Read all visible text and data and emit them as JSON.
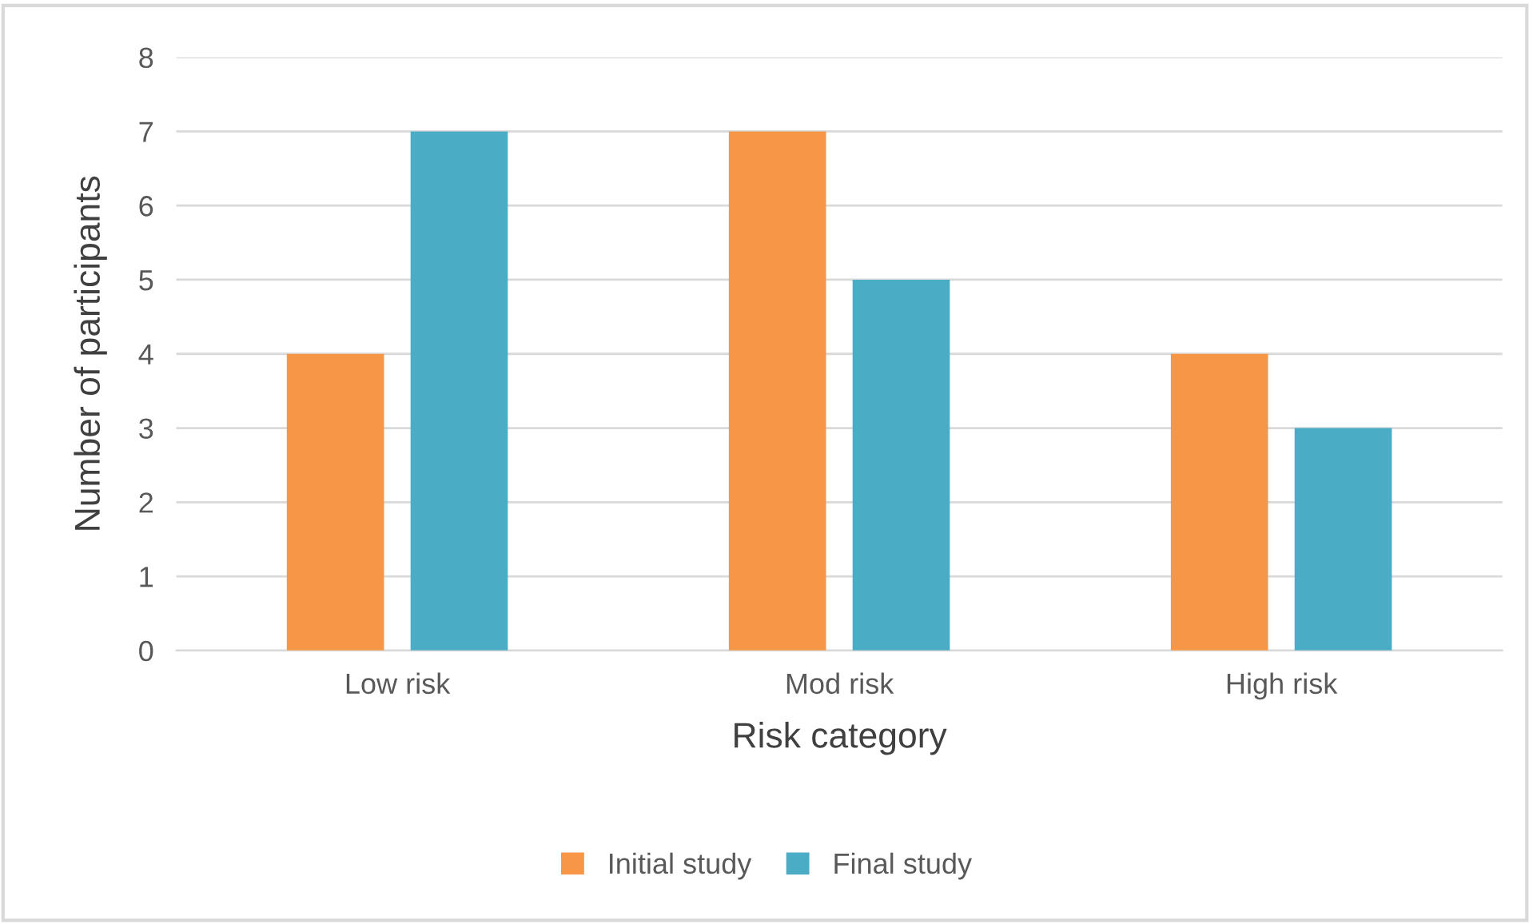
{
  "chart_data": {
    "type": "bar",
    "xlabel": "Risk category",
    "ylabel": "Number of participants",
    "categories": [
      "Low risk",
      "Mod risk",
      "High risk"
    ],
    "series": [
      {
        "name": "Initial study",
        "color": "#f79646",
        "values": [
          4,
          7,
          4
        ]
      },
      {
        "name": "Final study",
        "color": "#4bacc6",
        "values": [
          7,
          5,
          3
        ]
      }
    ],
    "ylim": [
      0,
      8
    ],
    "yticks": [
      0,
      1,
      2,
      3,
      4,
      5,
      6,
      7,
      8
    ],
    "grid": "y",
    "legend": "bottom"
  }
}
